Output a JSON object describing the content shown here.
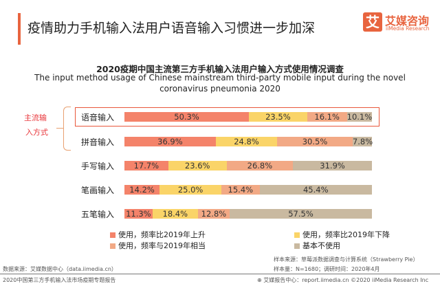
{
  "header": {
    "title": "疫情助力手机输入法用户语音输入习惯进一步加深",
    "logo_mark": "艾",
    "logo_cn": "艾媒咨询",
    "logo_en": "iiMedia Research"
  },
  "annotation": {
    "line1": "主流输",
    "line2": "入方式"
  },
  "chart_data": {
    "type": "bar",
    "orientation": "horizontal",
    "stacked": true,
    "title": "2020疫期中国主流第三方手机输入法用户输入方式使用情况调查",
    "subtitle_line1": "The input method usage of Chinese mainstream third-party mobile input during  the novel",
    "subtitle_line2": "coronavirus pneumonia 2020",
    "categories": [
      "语音输入",
      "拼音输入",
      "手写输入",
      "笔画输入",
      "五笔输入"
    ],
    "series": [
      {
        "name": "使用，频率比2019年上升",
        "color": "#F4836A",
        "values": [
          50.3,
          36.9,
          17.7,
          14.2,
          11.3
        ],
        "labels": [
          "50.3%",
          "36.9%",
          "17.7%",
          "14.2%",
          "11.3%"
        ]
      },
      {
        "name": "使用，频率比2019年下降",
        "color": "#FAD468",
        "values": [
          23.5,
          24.8,
          23.6,
          25.0,
          18.4
        ],
        "labels": [
          "23.5%",
          "24.8%",
          "23.6%",
          "25.0%",
          "18.4%"
        ]
      },
      {
        "name": "使用，频率与2019年相当",
        "color": "#F2A985",
        "values": [
          16.1,
          30.5,
          26.8,
          15.4,
          12.8
        ],
        "labels": [
          "16.1%",
          "30.5%",
          "26.8%",
          "15.4%",
          "12.8%"
        ]
      },
      {
        "name": "基本不使用",
        "color": "#C9B9A0",
        "values": [
          10.1,
          7.8,
          31.9,
          45.4,
          57.5
        ],
        "labels": [
          "10.1%",
          "7.8%",
          "31.9%",
          "45.4%",
          "57.5%"
        ]
      }
    ],
    "highlight_color": "#E8563A"
  },
  "footer": {
    "source": "数据来源：艾媒数据中心（data.iimedia.cn）",
    "sample_source": "样本来源：草莓派数据调查与计算系统（Strawberry Pie）",
    "sample_size": "样本量：N=1680；调研时间：2020年4月",
    "report": "2020中国第三方手机输入法市场疫期专题报告",
    "copyright": "艾媒报告中心：report.iimedia.cn  ©2020  iiMedia Research  Inc"
  }
}
